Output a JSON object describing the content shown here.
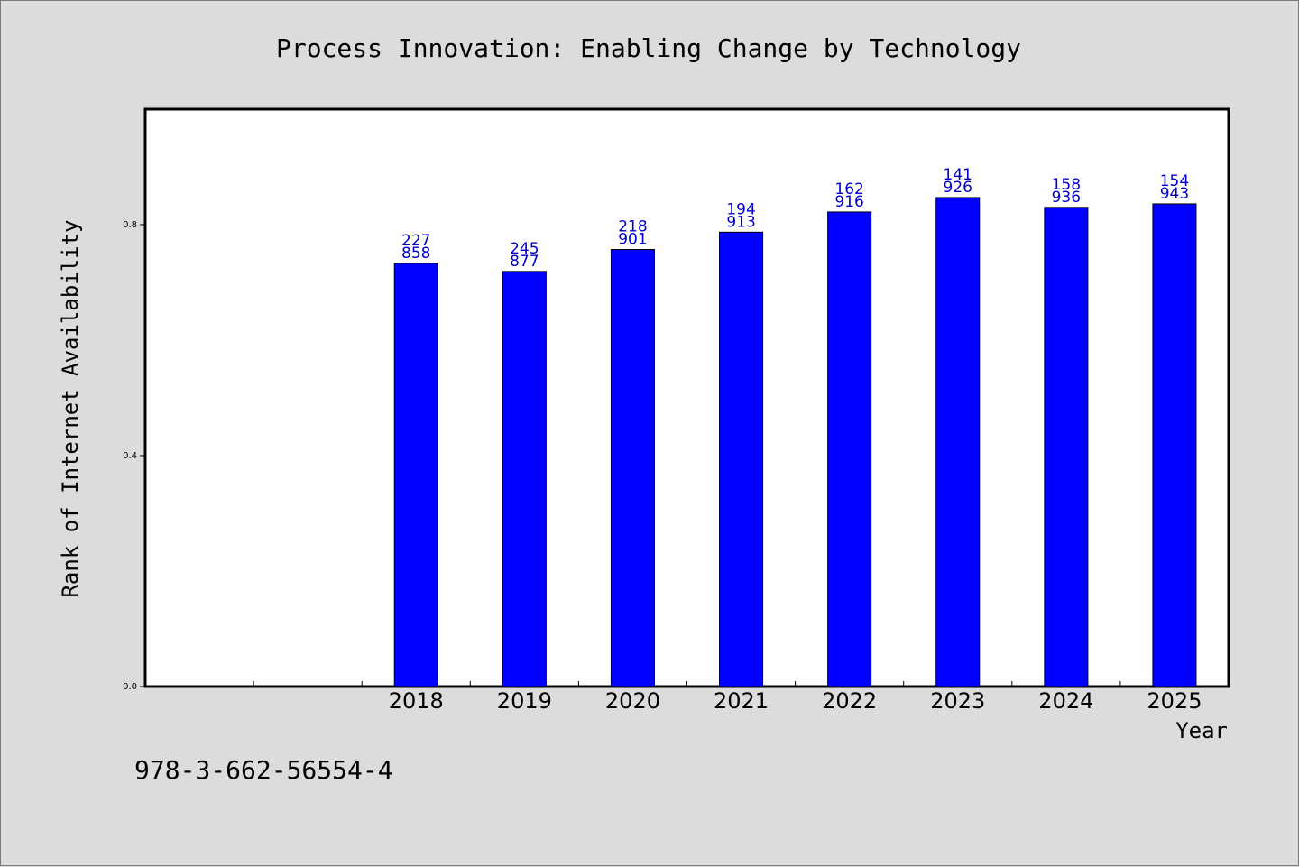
{
  "chart_data": {
    "type": "bar",
    "title": "Process Innovation: Enabling Change by Technology",
    "xlabel": "Year",
    "ylabel": "Rank of Internet Availability",
    "categories": [
      "2018",
      "2019",
      "2020",
      "2021",
      "2022",
      "2023",
      "2024",
      "2025"
    ],
    "values": [
      0.733,
      0.719,
      0.757,
      0.787,
      0.822,
      0.847,
      0.83,
      0.836
    ],
    "data_labels": [
      [
        "227",
        "858"
      ],
      [
        "245",
        "877"
      ],
      [
        "218",
        "901"
      ],
      [
        "194",
        "913"
      ],
      [
        "162",
        "916"
      ],
      [
        "141",
        "926"
      ],
      [
        "158",
        "936"
      ],
      [
        "154",
        "943"
      ]
    ],
    "yticks": [
      "0.0",
      "0.4",
      "0.8"
    ],
    "ylim": [
      0,
      1.0
    ],
    "grid": false,
    "leading_empty_slots": 2,
    "bar_color": "#0000ff",
    "label_color": "#0000cc"
  },
  "footer_text": "978-3-662-56554-4"
}
